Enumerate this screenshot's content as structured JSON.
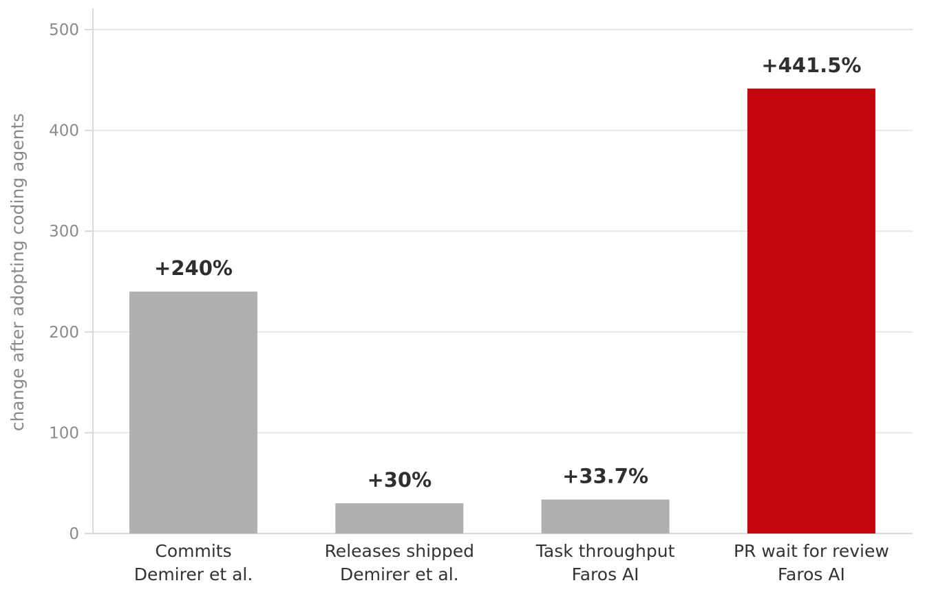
{
  "chart_data": {
    "type": "bar",
    "categories": [
      [
        "Commits",
        "Demirer et al."
      ],
      [
        "Releases shipped",
        "Demirer et al."
      ],
      [
        "Task throughput",
        "Faros AI"
      ],
      [
        "PR wait for review",
        "Faros AI"
      ]
    ],
    "values": [
      240,
      30,
      33.7,
      441.5
    ],
    "data_labels": [
      "+240%",
      "+30%",
      "+33.7%",
      "+441.5%"
    ],
    "colors": [
      "#b0b0b0",
      "#b0b0b0",
      "#b0b0b0",
      "#c4060c"
    ],
    "ylabel": "change after adopting coding agents",
    "ylim": [
      0,
      520
    ],
    "yticks": [
      0,
      100,
      200,
      300,
      400,
      500
    ],
    "grid": true,
    "gridlines": "horizontal"
  }
}
